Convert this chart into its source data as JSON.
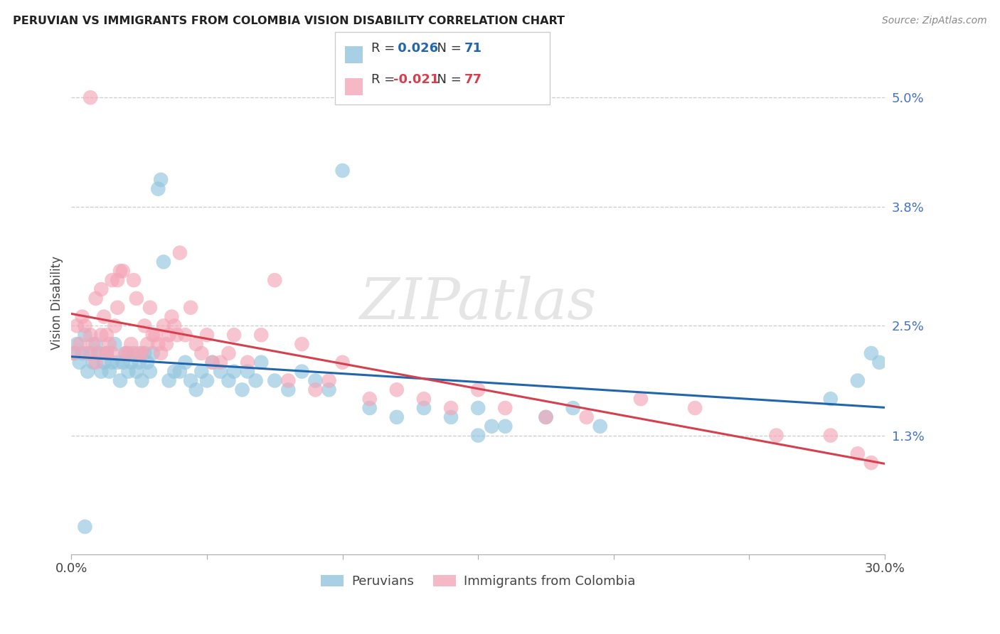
{
  "title": "PERUVIAN VS IMMIGRANTS FROM COLOMBIA VISION DISABILITY CORRELATION CHART",
  "source": "Source: ZipAtlas.com",
  "ylabel": "Vision Disability",
  "xlim": [
    0.0,
    0.3
  ],
  "ylim": [
    0.0,
    0.055
  ],
  "yticks": [
    0.013,
    0.025,
    0.038,
    0.05
  ],
  "yticklabels": [
    "1.3%",
    "2.5%",
    "3.8%",
    "5.0%"
  ],
  "watermark": "ZIPatlas",
  "blue_R": "0.026",
  "blue_N": "71",
  "pink_R": "-0.021",
  "pink_N": "77",
  "blue_color": "#92c5de",
  "pink_color": "#f4a6b8",
  "blue_line_color": "#2166ac",
  "pink_line_color": "#d6404e",
  "blue_scatter_x": [
    0.001,
    0.002,
    0.003,
    0.004,
    0.005,
    0.006,
    0.007,
    0.008,
    0.009,
    0.01,
    0.011,
    0.012,
    0.013,
    0.014,
    0.015,
    0.016,
    0.017,
    0.018,
    0.019,
    0.02,
    0.021,
    0.022,
    0.023,
    0.024,
    0.025,
    0.026,
    0.027,
    0.028,
    0.029,
    0.03,
    0.032,
    0.033,
    0.034,
    0.036,
    0.038,
    0.04,
    0.042,
    0.044,
    0.046,
    0.048,
    0.05,
    0.052,
    0.055,
    0.058,
    0.06,
    0.063,
    0.065,
    0.068,
    0.07,
    0.075,
    0.08,
    0.085,
    0.09,
    0.095,
    0.1,
    0.11,
    0.12,
    0.13,
    0.14,
    0.15,
    0.16,
    0.175,
    0.185,
    0.195,
    0.15,
    0.155,
    0.28,
    0.29,
    0.295,
    0.298,
    0.005
  ],
  "blue_scatter_y": [
    0.022,
    0.023,
    0.021,
    0.022,
    0.024,
    0.02,
    0.022,
    0.021,
    0.023,
    0.022,
    0.02,
    0.021,
    0.022,
    0.02,
    0.021,
    0.023,
    0.021,
    0.019,
    0.021,
    0.022,
    0.02,
    0.021,
    0.022,
    0.02,
    0.021,
    0.019,
    0.022,
    0.021,
    0.02,
    0.022,
    0.04,
    0.041,
    0.032,
    0.019,
    0.02,
    0.02,
    0.021,
    0.019,
    0.018,
    0.02,
    0.019,
    0.021,
    0.02,
    0.019,
    0.02,
    0.018,
    0.02,
    0.019,
    0.021,
    0.019,
    0.018,
    0.02,
    0.019,
    0.018,
    0.042,
    0.016,
    0.015,
    0.016,
    0.015,
    0.016,
    0.014,
    0.015,
    0.016,
    0.014,
    0.013,
    0.014,
    0.017,
    0.019,
    0.022,
    0.021,
    0.003
  ],
  "pink_scatter_x": [
    0.001,
    0.002,
    0.003,
    0.004,
    0.005,
    0.006,
    0.007,
    0.008,
    0.009,
    0.01,
    0.011,
    0.012,
    0.013,
    0.014,
    0.015,
    0.016,
    0.017,
    0.018,
    0.019,
    0.02,
    0.021,
    0.022,
    0.023,
    0.024,
    0.025,
    0.026,
    0.027,
    0.028,
    0.029,
    0.03,
    0.031,
    0.032,
    0.033,
    0.034,
    0.035,
    0.036,
    0.037,
    0.038,
    0.039,
    0.04,
    0.042,
    0.044,
    0.046,
    0.048,
    0.05,
    0.052,
    0.055,
    0.058,
    0.06,
    0.065,
    0.07,
    0.075,
    0.08,
    0.085,
    0.09,
    0.095,
    0.1,
    0.11,
    0.12,
    0.13,
    0.14,
    0.15,
    0.16,
    0.175,
    0.19,
    0.21,
    0.23,
    0.26,
    0.28,
    0.007,
    0.009,
    0.011,
    0.013,
    0.015,
    0.017,
    0.29,
    0.295
  ],
  "pink_scatter_y": [
    0.022,
    0.025,
    0.023,
    0.026,
    0.025,
    0.022,
    0.024,
    0.023,
    0.021,
    0.022,
    0.024,
    0.026,
    0.024,
    0.023,
    0.022,
    0.025,
    0.03,
    0.031,
    0.031,
    0.022,
    0.022,
    0.023,
    0.03,
    0.028,
    0.022,
    0.022,
    0.025,
    0.023,
    0.027,
    0.024,
    0.024,
    0.023,
    0.022,
    0.025,
    0.023,
    0.024,
    0.026,
    0.025,
    0.024,
    0.033,
    0.024,
    0.027,
    0.023,
    0.022,
    0.024,
    0.021,
    0.021,
    0.022,
    0.024,
    0.021,
    0.024,
    0.03,
    0.019,
    0.023,
    0.018,
    0.019,
    0.021,
    0.017,
    0.018,
    0.017,
    0.016,
    0.018,
    0.016,
    0.015,
    0.015,
    0.017,
    0.016,
    0.013,
    0.013,
    0.05,
    0.028,
    0.029,
    0.022,
    0.03,
    0.027,
    0.011,
    0.01
  ]
}
